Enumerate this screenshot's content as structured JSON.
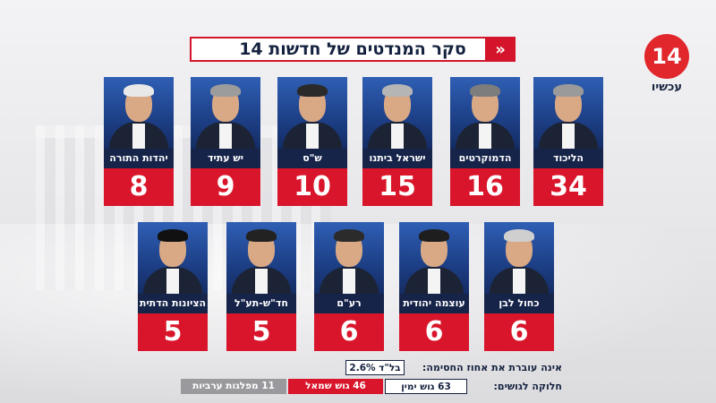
{
  "chart_data": {
    "type": "bar",
    "title": "סקר המנדטים של חדשות 14",
    "categories": [
      "הליכוד",
      "הדמוקרטים",
      "ישראל ביתנו",
      "ש\"ס",
      "יש עתיד",
      "יהדות התורה",
      "כחול לבן",
      "עוצמה יהודית",
      "רע\"ם",
      "חד\"ש-תע\"ל",
      "הציונות הדתית"
    ],
    "values": [
      34,
      16,
      15,
      10,
      9,
      8,
      6,
      6,
      6,
      5,
      5
    ]
  },
  "logo": {
    "number": "14",
    "name": "עכשיו"
  },
  "threshold": {
    "label": "אינה עוברת את אחוז החסימה:",
    "party": "בל\"ד 2.6%"
  },
  "blocs": {
    "label": "חלוקה לגושים:",
    "right": "63 גוש ימין",
    "left": "46 גוש שמאל",
    "arab": "11 מפלגות ערביות"
  },
  "colors": {
    "accent": "#d9152b",
    "navy": "#16244a"
  }
}
